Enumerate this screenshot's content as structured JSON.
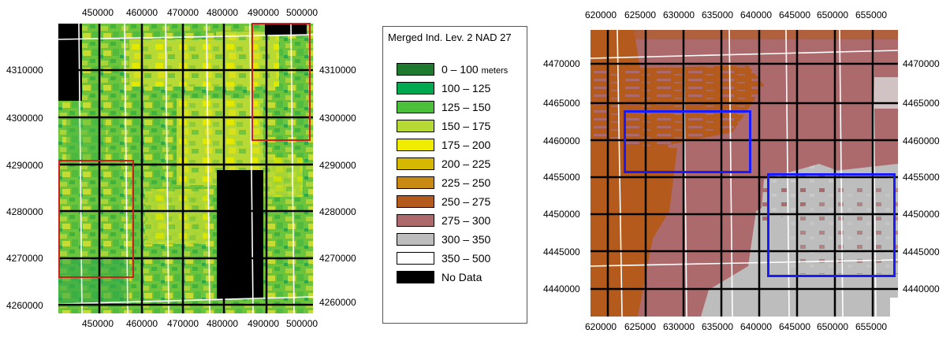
{
  "left_map": {
    "x_ticks_top": [
      "450000",
      "460000",
      "470000",
      "480000",
      "490000",
      "500000"
    ],
    "x_ticks_bottom": [
      "450000",
      "460000",
      "470000",
      "480000",
      "490000",
      "500000"
    ],
    "y_ticks_left": [
      "4310000",
      "4300000",
      "4290000",
      "4280000",
      "4270000",
      "4260000"
    ],
    "y_ticks_right": [
      "4310000",
      "4300000",
      "4290000",
      "4280000",
      "4270000",
      "4260000"
    ],
    "highlight_color": "#cc1f1f"
  },
  "legend": {
    "title": "Merged Ind. Lev. 2 NAD 27",
    "unit": "meters",
    "items": [
      {
        "label": "0 – 100",
        "color": "#1e7a2e"
      },
      {
        "label": "100 – 125",
        "color": "#00a84f"
      },
      {
        "label": "125 – 150",
        "color": "#4cbf3a"
      },
      {
        "label": "150 – 175",
        "color": "#b6d934"
      },
      {
        "label": "175 – 200",
        "color": "#f0ec00"
      },
      {
        "label": "200 – 225",
        "color": "#d6b800"
      },
      {
        "label": "225 – 250",
        "color": "#c98a14"
      },
      {
        "label": "250 – 275",
        "color": "#b35a1c"
      },
      {
        "label": "275 – 300",
        "color": "#ad6a6d"
      },
      {
        "label": "300 – 350",
        "color": "#bdbdbd"
      },
      {
        "label": "350 – 500",
        "color": "#ffffff"
      },
      {
        "label": "No Data",
        "color": "#000000"
      }
    ]
  },
  "right_map": {
    "x_ticks_top": [
      "620000",
      "625000",
      "630000",
      "635000",
      "640000",
      "645000",
      "650000",
      "655000"
    ],
    "x_ticks_bottom": [
      "620000",
      "625000",
      "630000",
      "635000",
      "640000",
      "645000",
      "650000",
      "655000"
    ],
    "y_ticks_left": [
      "4470000",
      "4465000",
      "4460000",
      "4455000",
      "4450000",
      "4445000",
      "4440000"
    ],
    "y_ticks_right": [
      "4470000",
      "4465000",
      "4460000",
      "4455000",
      "4450000",
      "4445000",
      "4440000"
    ],
    "highlight_color": "#1a1aff"
  }
}
